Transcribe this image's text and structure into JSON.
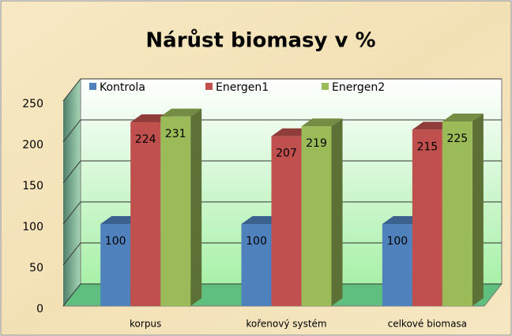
{
  "chart_data": {
    "type": "bar3d",
    "title": "Nárůst biomasy v %",
    "categories": [
      "korpus",
      "kořenový systém",
      "celkové biomasa"
    ],
    "series": [
      {
        "name": "Kontrola",
        "color": "#4f81bd",
        "values": [
          100,
          100,
          100
        ]
      },
      {
        "name": "Energen1",
        "color": "#c0504d",
        "values": [
          224,
          207,
          215
        ]
      },
      {
        "name": "Energen2",
        "color": "#9bbb59",
        "values": [
          231,
          219,
          225
        ]
      }
    ],
    "ylim": [
      0,
      250
    ],
    "yticks": [
      0,
      50,
      100,
      150,
      200,
      250
    ],
    "grid": true,
    "legend": "top"
  }
}
